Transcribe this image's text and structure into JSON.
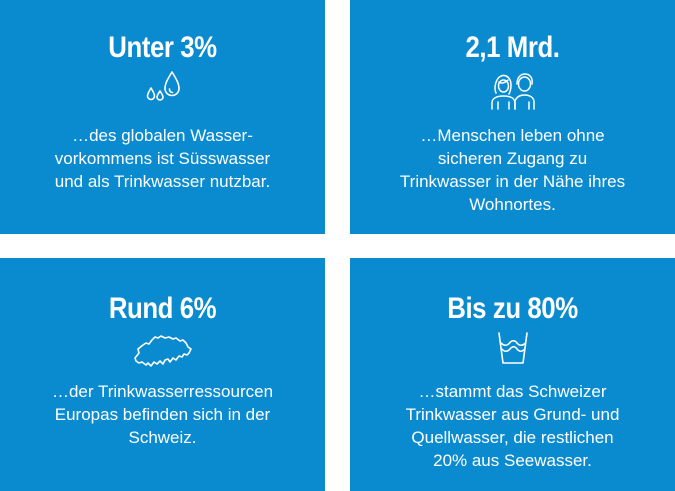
{
  "colors": {
    "tile_background": "#0a8bd0",
    "text": "#ffffff",
    "gutter": "#ffffff"
  },
  "tiles": [
    {
      "headline": "Unter 3%",
      "icon": "water-drops-icon",
      "text": "…des globalen Wasser-\nvorkommens ist Süsswasser\nund als Trinkwasser nutzbar."
    },
    {
      "headline": "2,1 Mrd.",
      "icon": "people-icon",
      "text": "…Menschen leben ohne\nsicheren Zugang zu\nTrinkwasser in der Nähe ihres\nWohnortes."
    },
    {
      "headline": "Rund 6%",
      "icon": "switzerland-map-icon",
      "text": "…der Trinkwasserressourcen\nEuropas befinden sich in der\nSchweiz."
    },
    {
      "headline": "Bis zu 80%",
      "icon": "water-glass-icon",
      "text": "…stammt das Schweizer\nTrinkwasser aus Grund- und\nQuellwasser, die restlichen\n20% aus Seewasser."
    }
  ]
}
